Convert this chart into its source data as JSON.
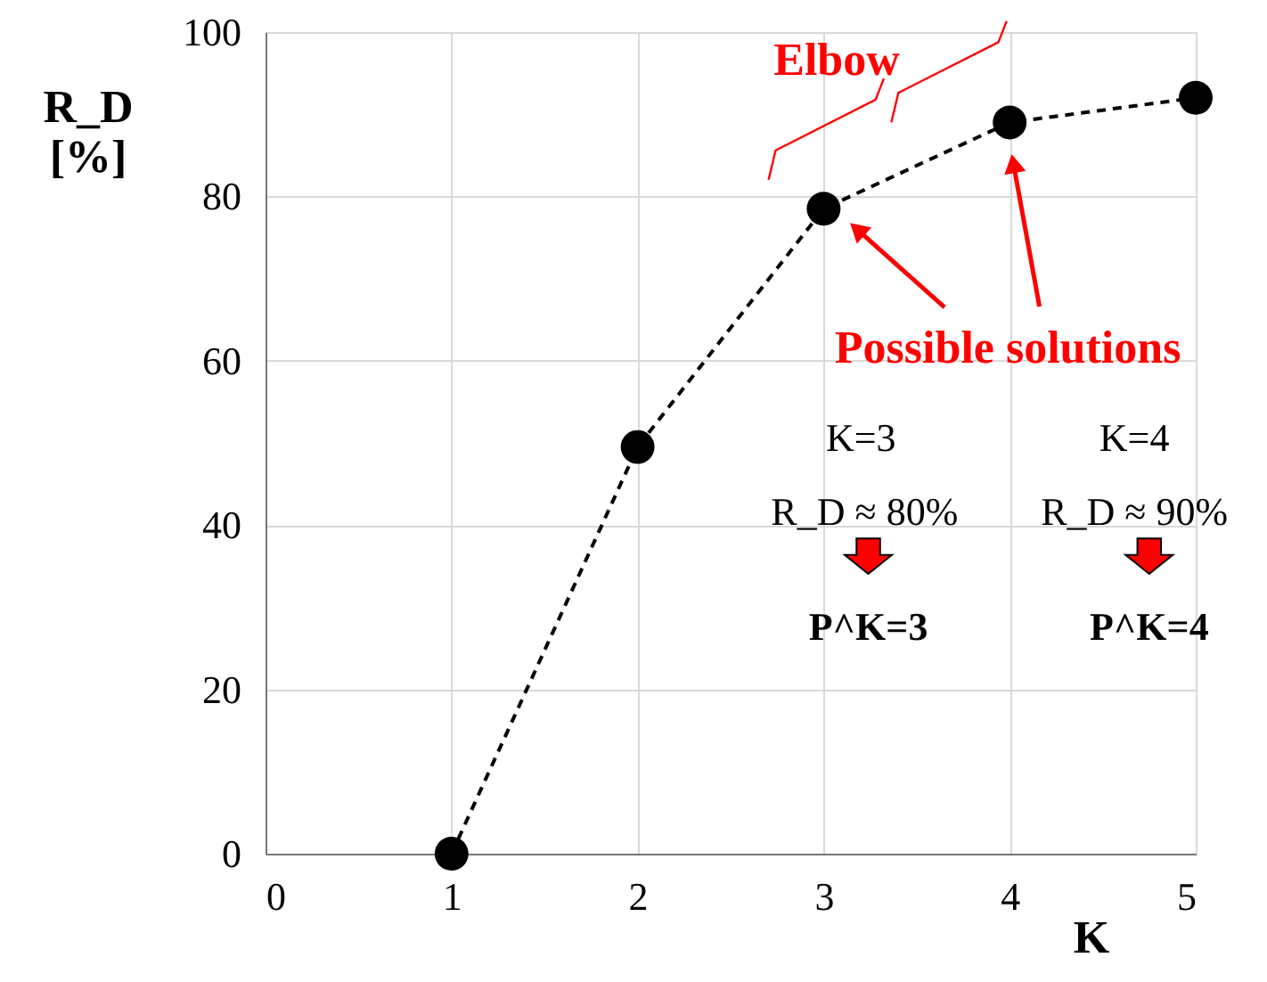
{
  "chart_data": {
    "type": "line",
    "xlabel": "K",
    "ylabel": "R_D [%]",
    "x": [
      1,
      2,
      3,
      4,
      5
    ],
    "series": [
      {
        "color": "#000000",
        "values": [
          0,
          49.5,
          78.5,
          89,
          92
        ]
      }
    ],
    "xlim": [
      0,
      5
    ],
    "xticks": [
      0,
      1,
      2,
      3,
      4,
      5
    ],
    "ylim": [
      0,
      100
    ],
    "yticks": [
      0,
      20,
      40,
      60,
      80,
      100
    ],
    "grid": true,
    "marker": "circle",
    "line_style": "dashed",
    "annotations": [
      "Elbow",
      "Possible solutions",
      "K=3",
      "R_D ≈ 80%",
      "P^K=3",
      "K=4",
      "R_D ≈ 90%",
      "P^K=4"
    ]
  }
}
